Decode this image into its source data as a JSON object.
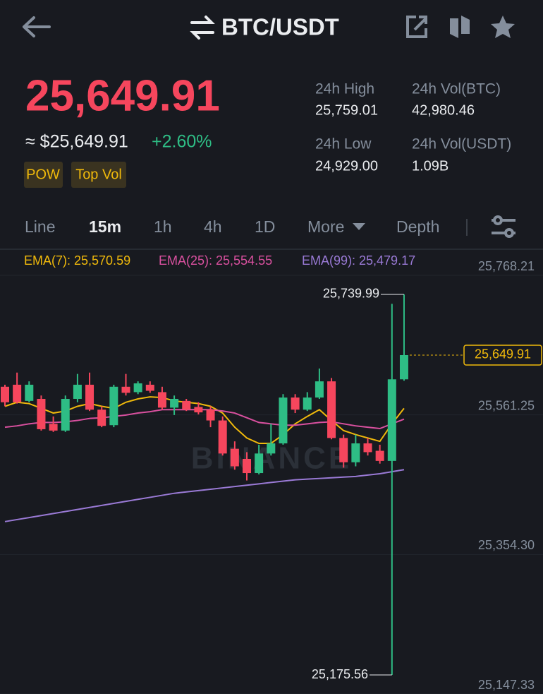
{
  "header": {
    "pair": "BTC/USDT"
  },
  "ticker": {
    "price": "25,649.91",
    "fiat": "≈ $25,649.91",
    "change": "+2.60%",
    "tags": [
      "POW",
      "Top Vol"
    ],
    "stats": [
      {
        "label": "24h High",
        "value": "25,759.01"
      },
      {
        "label": "24h Vol(BTC)",
        "value": "42,980.46"
      },
      {
        "label": "24h Low",
        "value": "24,929.00"
      },
      {
        "label": "24h Vol(USDT)",
        "value": "1.09B"
      }
    ]
  },
  "tabs": [
    "Line",
    "15m",
    "1h",
    "4h",
    "1D",
    "More",
    "Depth"
  ],
  "chart_data": {
    "type": "candlestick",
    "watermark": "BINANCE",
    "up_color": "#2ebd85",
    "down_color": "#f6465d",
    "open": [
      25603,
      25606,
      25582,
      25585,
      25548,
      25538,
      25585,
      25606,
      25569,
      25546,
      25603,
      25595,
      25606,
      25595,
      25572,
      25582,
      25573,
      25569,
      25553,
      25511,
      25496,
      25475,
      25504,
      25519,
      25587,
      25569,
      25587,
      25611,
      25527,
      25491,
      25519,
      25508,
      25493,
      25614
    ],
    "high": [
      25606,
      25624,
      25611,
      25590,
      25559,
      25590,
      25622,
      25624,
      25574,
      25606,
      25622,
      25611,
      25611,
      25603,
      25590,
      25585,
      25580,
      25574,
      25559,
      25522,
      25506,
      25517,
      25548,
      25592,
      25592,
      25595,
      25630,
      25616,
      25532,
      25532,
      25527,
      25517,
      25726,
      25739.99
    ],
    "low": [
      25574,
      25578,
      25580,
      25538,
      25536,
      25536,
      25580,
      25567,
      25543,
      25543,
      25590,
      25592,
      25594,
      25569,
      25561,
      25567,
      25562,
      25543,
      25501,
      25480,
      25464,
      25473,
      25501,
      25517,
      25564,
      25567,
      25585,
      25525,
      25483,
      25485,
      25501,
      25489,
      25175.56,
      25612
    ],
    "close": [
      25580,
      25580,
      25606,
      25540,
      25538,
      25585,
      25606,
      25569,
      25545,
      25603,
      25594,
      25608,
      25597,
      25572,
      25585,
      25569,
      25565,
      25553,
      25504,
      25485,
      25475,
      25504,
      25519,
      25587,
      25569,
      25587,
      25611,
      25527,
      25491,
      25519,
      25506,
      25493,
      25614,
      25649.91
    ],
    "ema": [
      {
        "name": "EMA(7): 25,570.59",
        "color": "#f0b90b",
        "values": [
          25574,
          25580,
          25578,
          25571,
          25564,
          25567,
          25574,
          25578,
          25574,
          25571,
          25580,
          25585,
          25588,
          25587,
          25582,
          25580,
          25578,
          25574,
          25564,
          25543,
          25527,
          25519,
          25519,
          25532,
          25548,
          25559,
          25569,
          25553,
          25538,
          25532,
          25527,
          25522,
          25548,
          25571
        ]
      },
      {
        "name": "EMA(25): 25,554.55",
        "color": "#d9509f",
        "values": [
          25543,
          25545,
          25548,
          25550,
          25550,
          25551,
          25553,
          25556,
          25557,
          25559,
          25561,
          25564,
          25566,
          25569,
          25569,
          25569,
          25569,
          25569,
          25567,
          25564,
          25557,
          25550,
          25548,
          25546,
          25546,
          25548,
          25550,
          25551,
          25548,
          25545,
          25543,
          25541,
          25548,
          25555
        ]
      },
      {
        "name": "EMA(99): 25,479.17",
        "color": "#9a7ad6",
        "values": [
          25403,
          25406,
          25409,
          25412,
          25415,
          25418,
          25421,
          25424,
          25427,
          25430,
          25433,
          25436,
          25439,
          25442,
          25445,
          25447,
          25449,
          25451,
          25453,
          25455,
          25457,
          25459,
          25461,
          25463,
          25465,
          25466,
          25467,
          25468,
          25469,
          25470,
          25472,
          25474,
          25477,
          25480
        ]
      }
    ],
    "ylim": [
      25147.33,
      25804.86
    ],
    "yticks": [
      {
        "value": 25768.21,
        "label": "25,768.21"
      },
      {
        "value": 25561.25,
        "label": "25,561.25"
      },
      {
        "value": 25354.3,
        "label": "25,354.30"
      },
      {
        "value": 25147.33,
        "label": "25,147.33"
      }
    ],
    "grid": true,
    "last_price": {
      "value": 25649.91,
      "label": "25,649.91"
    },
    "high_marker": {
      "value": 25739.99,
      "label": "25,739.99"
    },
    "low_marker": {
      "value": 25175.56,
      "label": "25,175.56"
    }
  }
}
